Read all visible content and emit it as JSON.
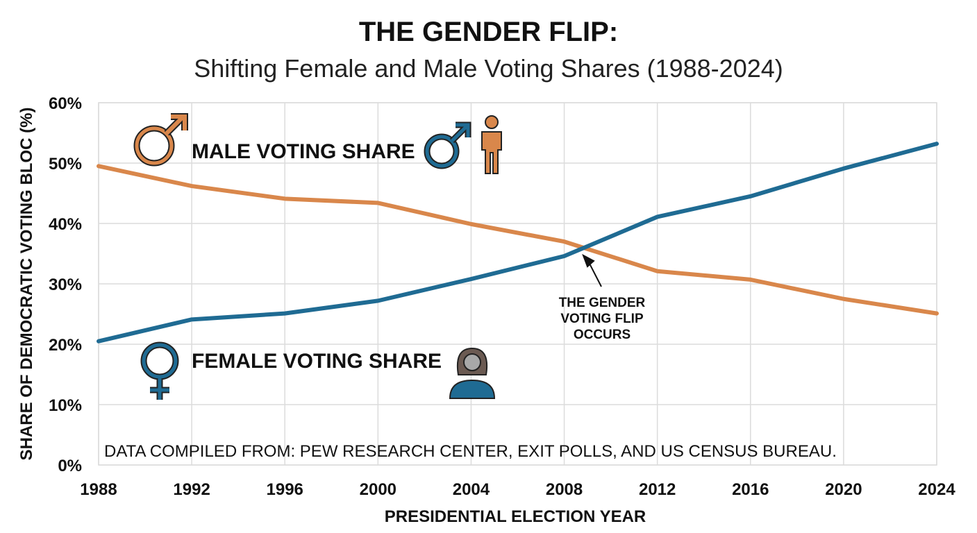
{
  "chart_data": {
    "type": "line",
    "title": "THE GENDER FLIP:",
    "subtitle": "Shifting Female and Male Voting Shares (1988-2024)",
    "xlabel": "PRESIDENTIAL ELECTION YEAR",
    "ylabel": "SHARE OF DEMOCRATIC VOTING BLOC (%)",
    "x": [
      1988,
      1992,
      1996,
      2000,
      2004,
      2008,
      2012,
      2016,
      2020,
      2024
    ],
    "x_tick_labels": [
      "1988",
      "1992",
      "1996",
      "2000",
      "2004",
      "2008",
      "2012",
      "2016",
      "2020",
      "2024"
    ],
    "ylim": [
      0,
      60
    ],
    "y_ticks": [
      0,
      10,
      20,
      30,
      40,
      50,
      60
    ],
    "y_tick_labels": [
      "0%",
      "10%",
      "20%",
      "30%",
      "40%",
      "50%",
      "60%"
    ],
    "grid": true,
    "series": [
      {
        "name": "MALE VOTING SHARE",
        "color": "#d9874b",
        "values": [
          49.5,
          46.2,
          44.1,
          43.4,
          39.9,
          37.0,
          32.1,
          30.7,
          27.5,
          25.1
        ]
      },
      {
        "name": "FEMALE VOTING SHARE",
        "color": "#1f6b93",
        "values": [
          20.5,
          24.1,
          25.1,
          27.2,
          30.8,
          34.6,
          41.1,
          44.5,
          49.1,
          53.2
        ]
      }
    ],
    "annotation": {
      "lines": [
        "THE GENDER",
        "VOTING FLIP",
        "OCCURS"
      ],
      "x": 2009,
      "y": 35.8
    },
    "source": "DATA COMPILED FROM: PEW RESEARCH CENTER, EXIT POLLS, AND US CENSUS BUREAU."
  }
}
